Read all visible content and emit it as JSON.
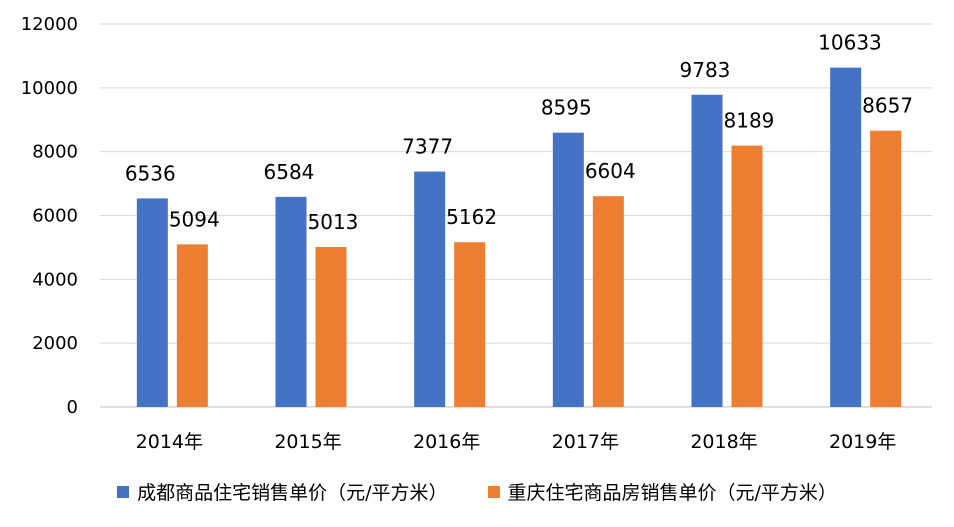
{
  "chart_data": {
    "type": "bar",
    "title": "",
    "xlabel": "",
    "ylabel": "",
    "categories": [
      "2014年",
      "2015年",
      "2016年",
      "2017年",
      "2018年",
      "2019年"
    ],
    "ylim": [
      0,
      12000
    ],
    "yticks": [
      0,
      2000,
      4000,
      6000,
      8000,
      10000,
      12000
    ],
    "grid": true,
    "legend_position": "bottom",
    "series": [
      {
        "name": "成都商品住宅销售单价（元/平方米）",
        "color": "#4472C4",
        "values": [
          6536,
          6584,
          7377,
          8595,
          9783,
          10633
        ]
      },
      {
        "name": "重庆住宅商品房销售单价（元/平方米）",
        "color": "#ED7D31",
        "values": [
          5094,
          5013,
          5162,
          6604,
          8189,
          8657
        ]
      }
    ]
  }
}
